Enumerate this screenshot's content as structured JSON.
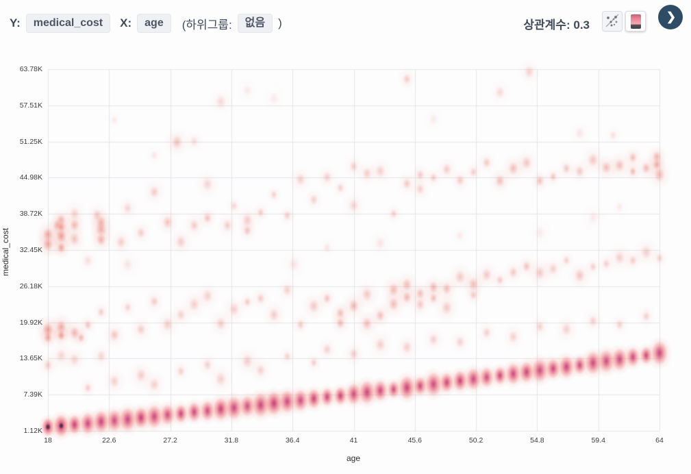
{
  "header": {
    "y_label": "Y:",
    "y_value": "medical_cost",
    "x_label": "X:",
    "x_value": "age",
    "subgroup_prefix": "(하위그룹:",
    "subgroup_value": "없음",
    "subgroup_suffix": ")",
    "correlation_label": "상관계수:",
    "correlation_value": "0.3"
  },
  "colors": {
    "page_bg": "#fdfdfe",
    "grid": "#e3e4e8",
    "header_text": "#3e4a5a",
    "chip_bg": "#eef0f3",
    "chip_border": "#e3e6ea",
    "next_button_bg": "#2e4c66",
    "scatter_salmon": "#e66a56",
    "band_pink": "#e85c75",
    "band_magenta": "#b2307a",
    "band_dark_core": "#2a2e44"
  },
  "chart_data": {
    "type": "scatter",
    "variant": "density-blobs",
    "title": "",
    "xlabel": "age",
    "ylabel": "medical_cost",
    "x_range": [
      18,
      64
    ],
    "y_range": [
      1.12,
      63.78
    ],
    "grid": true,
    "legend": "none",
    "correlation": 0.3,
    "x_ticks": {
      "values": [
        18,
        22.6,
        27.2,
        31.8,
        36.4,
        41,
        45.6,
        50.2,
        54.8,
        59.4,
        64
      ],
      "labels": [
        "18",
        "22.6",
        "27.2",
        "31.8",
        "36.4",
        "41",
        "45.6",
        "50.2",
        "54.8",
        "59.4",
        "64"
      ]
    },
    "y_ticks": {
      "values": [
        1.12,
        7.39,
        13.65,
        19.92,
        26.18,
        32.45,
        38.72,
        44.98,
        51.25,
        57.51,
        63.78
      ],
      "labels": [
        "1.12K",
        "7.39K",
        "13.65K",
        "19.92K",
        "26.18K",
        "32.45K",
        "38.72K",
        "44.98K",
        "51.25K",
        "57.51K",
        "63.78K"
      ]
    },
    "lower_band": {
      "description": "dense bottom band, one blob per integer age, cost in thousands",
      "ages": [
        18,
        19,
        20,
        21,
        22,
        23,
        24,
        25,
        26,
        27,
        28,
        29,
        30,
        31,
        32,
        33,
        34,
        35,
        36,
        37,
        38,
        39,
        40,
        41,
        42,
        43,
        44,
        45,
        46,
        47,
        48,
        49,
        50,
        51,
        52,
        53,
        54,
        55,
        56,
        57,
        58,
        59,
        60,
        61,
        62,
        63,
        64
      ],
      "costs_k": [
        1.8,
        2.0,
        2.2,
        2.4,
        2.7,
        2.9,
        3.1,
        3.4,
        3.6,
        3.9,
        4.1,
        4.4,
        4.6,
        4.9,
        5.1,
        5.4,
        5.6,
        5.9,
        6.2,
        6.4,
        6.7,
        7.0,
        7.2,
        7.5,
        7.8,
        8.1,
        8.3,
        8.6,
        8.9,
        9.2,
        9.5,
        9.8,
        10.1,
        10.4,
        10.7,
        11.0,
        11.3,
        11.6,
        11.9,
        12.2,
        12.5,
        12.9,
        13.2,
        13.5,
        13.9,
        14.2,
        14.6
      ],
      "intensity": [
        1.0,
        0.98,
        0.88,
        0.8,
        0.85,
        0.78,
        0.82,
        0.9,
        0.8,
        0.76,
        0.84,
        0.8,
        0.78,
        0.86,
        0.8,
        0.74,
        0.82,
        0.88,
        0.8,
        0.78,
        0.84,
        0.8,
        0.86,
        0.78,
        0.82,
        0.8,
        0.76,
        0.84,
        0.8,
        0.78,
        0.82,
        0.86,
        0.8,
        0.76,
        0.82,
        0.8,
        0.84,
        0.78,
        0.8,
        0.82,
        0.78,
        0.8,
        0.76,
        0.8,
        0.78,
        0.8,
        0.82
      ]
    },
    "scatter_points_format": [
      "age",
      "medical_cost_k",
      "intensity"
    ],
    "scatter_points": [
      [
        18,
        33.4,
        0.5
      ],
      [
        18,
        35.1,
        0.5
      ],
      [
        18.7,
        36.6,
        0.4
      ],
      [
        19,
        33.0,
        0.55
      ],
      [
        19,
        34.7,
        0.6
      ],
      [
        19,
        36.3,
        0.5
      ],
      [
        19,
        37.7,
        0.4
      ],
      [
        20,
        36.9,
        0.4
      ],
      [
        20,
        34.2,
        0.35
      ],
      [
        20,
        38.9,
        0.25
      ],
      [
        21.7,
        38.6,
        0.3
      ],
      [
        22,
        34.4,
        0.45
      ],
      [
        22,
        35.9,
        0.45
      ],
      [
        22,
        37.3,
        0.4
      ],
      [
        23.5,
        33.7,
        0.3
      ],
      [
        24,
        39.7,
        0.25
      ],
      [
        25,
        35.6,
        0.3
      ],
      [
        26,
        42.6,
        0.3
      ],
      [
        27,
        37.1,
        0.35
      ],
      [
        27.7,
        51.2,
        0.35
      ],
      [
        28,
        33.9,
        0.3
      ],
      [
        29,
        36.6,
        0.3
      ],
      [
        30,
        38.1,
        0.35
      ],
      [
        30,
        43.8,
        0.25
      ],
      [
        31,
        58.0,
        0.22
      ],
      [
        31.5,
        36.6,
        0.3
      ],
      [
        32,
        40.0,
        0.25
      ],
      [
        33,
        35.9,
        0.35
      ],
      [
        33,
        37.5,
        0.3
      ],
      [
        34,
        39.1,
        0.3
      ],
      [
        35,
        42.1,
        0.28
      ],
      [
        36,
        38.6,
        0.3
      ],
      [
        37,
        44.6,
        0.28
      ],
      [
        38,
        41.1,
        0.28
      ],
      [
        39,
        45.1,
        0.28
      ],
      [
        40,
        43.1,
        0.28
      ],
      [
        41,
        47.1,
        0.28
      ],
      [
        41,
        40.3,
        0.25
      ],
      [
        42,
        45.6,
        0.3
      ],
      [
        43,
        46.1,
        0.28
      ],
      [
        44,
        38.6,
        0.28
      ],
      [
        45,
        61.9,
        0.3
      ],
      [
        45,
        44.1,
        0.32
      ],
      [
        46,
        45.6,
        0.32
      ],
      [
        46,
        43.1,
        0.28
      ],
      [
        47,
        45.1,
        0.3
      ],
      [
        48,
        46.6,
        0.3
      ],
      [
        49,
        44.6,
        0.32
      ],
      [
        50,
        46.1,
        0.3
      ],
      [
        51,
        47.6,
        0.32
      ],
      [
        52,
        44.6,
        0.38
      ],
      [
        52,
        59.8,
        0.22
      ],
      [
        53,
        46.6,
        0.38
      ],
      [
        54,
        47.6,
        0.33
      ],
      [
        54.2,
        63.4,
        0.28
      ],
      [
        55,
        44.6,
        0.38
      ],
      [
        56,
        45.1,
        0.33
      ],
      [
        57,
        46.6,
        0.33
      ],
      [
        58,
        46.1,
        0.33
      ],
      [
        58,
        52.6,
        0.15
      ],
      [
        59,
        48.1,
        0.33
      ],
      [
        60,
        46.6,
        0.38
      ],
      [
        60.5,
        52.2,
        0.18
      ],
      [
        61,
        47.1,
        0.38
      ],
      [
        62,
        46.1,
        0.42
      ],
      [
        62,
        48.6,
        0.38
      ],
      [
        63,
        46.6,
        0.4
      ],
      [
        63.8,
        47.2,
        0.48
      ],
      [
        63.8,
        48.8,
        0.4
      ],
      [
        64,
        45.5,
        0.4
      ],
      [
        18,
        17.3,
        0.5
      ],
      [
        18,
        18.7,
        0.55
      ],
      [
        19,
        17.7,
        0.6
      ],
      [
        19,
        19.3,
        0.5
      ],
      [
        20,
        18.1,
        0.45
      ],
      [
        20.5,
        17.4,
        0.4
      ],
      [
        21,
        19.6,
        0.35
      ],
      [
        22,
        21.6,
        0.3
      ],
      [
        23,
        17.6,
        0.35
      ],
      [
        24,
        22.6,
        0.28
      ],
      [
        25,
        18.6,
        0.3
      ],
      [
        26,
        23.6,
        0.3
      ],
      [
        27,
        19.6,
        0.3
      ],
      [
        28,
        21.1,
        0.28
      ],
      [
        29,
        23.1,
        0.28
      ],
      [
        30,
        24.6,
        0.28
      ],
      [
        31,
        19.9,
        0.3
      ],
      [
        32,
        22.1,
        0.28
      ],
      [
        33,
        23.6,
        0.32
      ],
      [
        34,
        24.1,
        0.3
      ],
      [
        35,
        21.1,
        0.3
      ],
      [
        36,
        25.6,
        0.28
      ],
      [
        37,
        19.6,
        0.32
      ],
      [
        38,
        22.6,
        0.32
      ],
      [
        39,
        24.1,
        0.35
      ],
      [
        40,
        19.9,
        0.4
      ],
      [
        40,
        21.6,
        0.38
      ],
      [
        41,
        22.9,
        0.42
      ],
      [
        42,
        19.6,
        0.38
      ],
      [
        42,
        24.6,
        0.32
      ],
      [
        43,
        21.1,
        0.38
      ],
      [
        44,
        25.6,
        0.4
      ],
      [
        44,
        23.1,
        0.38
      ],
      [
        45,
        26.6,
        0.38
      ],
      [
        45,
        24.1,
        0.42
      ],
      [
        46,
        25.1,
        0.38
      ],
      [
        46,
        23.1,
        0.32
      ],
      [
        47,
        26.1,
        0.42
      ],
      [
        47,
        24.1,
        0.38
      ],
      [
        48,
        25.6,
        0.38
      ],
      [
        48,
        22.6,
        0.32
      ],
      [
        49,
        27.6,
        0.32
      ],
      [
        50,
        26.6,
        0.38
      ],
      [
        50,
        24.6,
        0.32
      ],
      [
        51,
        28.1,
        0.32
      ],
      [
        52,
        27.1,
        0.32
      ],
      [
        53,
        28.6,
        0.32
      ],
      [
        54,
        29.6,
        0.35
      ],
      [
        55,
        28.6,
        0.32
      ],
      [
        56,
        29.1,
        0.28
      ],
      [
        57,
        30.6,
        0.28
      ],
      [
        58,
        28.1,
        0.35
      ],
      [
        59,
        29.6,
        0.3
      ],
      [
        60,
        30.1,
        0.28
      ],
      [
        61,
        31.1,
        0.28
      ],
      [
        62,
        30.6,
        0.3
      ],
      [
        63,
        32.1,
        0.28
      ],
      [
        64,
        31.1,
        0.28
      ],
      [
        18,
        12.6,
        0.3
      ],
      [
        19,
        14.1,
        0.25
      ],
      [
        20,
        13.6,
        0.25
      ],
      [
        21,
        8.6,
        0.3
      ],
      [
        22,
        13.9,
        0.25
      ],
      [
        23,
        9.6,
        0.28
      ],
      [
        25,
        10.6,
        0.3
      ],
      [
        26,
        9.1,
        0.28
      ],
      [
        28,
        11.6,
        0.28
      ],
      [
        30,
        12.6,
        0.28
      ],
      [
        31,
        10.1,
        0.28
      ],
      [
        33,
        13.1,
        0.3
      ],
      [
        34,
        11.6,
        0.28
      ],
      [
        36,
        14.1,
        0.28
      ],
      [
        38,
        13.1,
        0.3
      ],
      [
        39,
        15.1,
        0.28
      ],
      [
        41,
        14.6,
        0.3
      ],
      [
        43,
        16.1,
        0.28
      ],
      [
        45,
        15.6,
        0.28
      ],
      [
        47,
        17.1,
        0.28
      ],
      [
        49,
        16.6,
        0.28
      ],
      [
        51,
        18.1,
        0.28
      ],
      [
        53,
        17.6,
        0.28
      ],
      [
        55,
        19.1,
        0.28
      ],
      [
        57,
        18.6,
        0.28
      ],
      [
        59,
        20.1,
        0.28
      ],
      [
        61,
        19.6,
        0.28
      ],
      [
        63,
        21.1,
        0.28
      ],
      [
        23,
        55.1,
        0.12
      ],
      [
        26,
        48.9,
        0.14
      ],
      [
        29,
        51.3,
        0.2
      ],
      [
        33,
        60.1,
        0.12
      ],
      [
        35,
        58.6,
        0.12
      ],
      [
        47,
        55.1,
        0.12
      ],
      [
        36.5,
        30.1,
        0.15
      ],
      [
        24,
        30.0,
        0.15
      ],
      [
        21,
        30.5,
        0.18
      ],
      [
        39,
        33.0,
        0.15
      ],
      [
        43,
        33.5,
        0.15
      ],
      [
        49,
        35.0,
        0.12
      ],
      [
        55,
        35.5,
        0.12
      ],
      [
        59,
        38.0,
        0.12
      ],
      [
        61,
        40.0,
        0.12
      ]
    ]
  }
}
